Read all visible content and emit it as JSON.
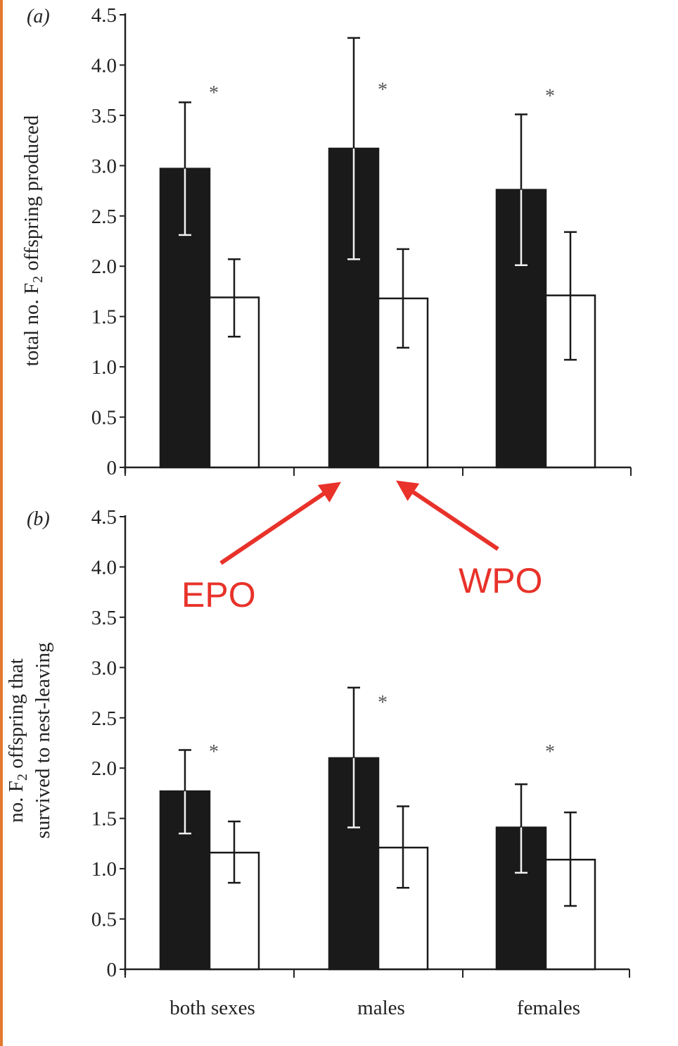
{
  "figure": {
    "edge_color": "#e2792f",
    "annotation_color": "#e8322a",
    "epo_label": "EPO",
    "wpo_label": "WPO"
  },
  "chart_data": [
    {
      "type": "bar",
      "panel_label": "(a)",
      "ylabel": "total no. F",
      "ylabel_sub": "2",
      "ylabel_rest": " offspring produced",
      "ylim": [
        0,
        4.5
      ],
      "yticks": [
        "0",
        "0.5",
        "1.0",
        "1.5",
        "2.0",
        "2.5",
        "3.0",
        "3.5",
        "4.0",
        "4.5"
      ],
      "categories": [
        "both sexes",
        "males",
        "females"
      ],
      "show_category_labels": false,
      "series": [
        {
          "fill": "#1a1a1a",
          "values": [
            2.97,
            3.17,
            2.76
          ],
          "err_low": [
            2.31,
            2.07,
            2.01
          ],
          "err_high": [
            3.63,
            4.27,
            3.51
          ]
        },
        {
          "fill": "#ffffff",
          "values": [
            1.69,
            1.68,
            1.71
          ],
          "err_low": [
            1.3,
            1.19,
            1.07
          ],
          "err_high": [
            2.07,
            2.17,
            2.34
          ]
        }
      ],
      "significance": [
        "*",
        "*",
        "*"
      ],
      "significance_y": [
        3.8,
        3.83,
        3.77
      ]
    },
    {
      "type": "bar",
      "panel_label": "(b)",
      "ylabel": "no. F",
      "ylabel_sub": "2",
      "ylabel_rest": " offspring that",
      "ylabel_line2": "survived to nest-leaving",
      "ylim": [
        0,
        4.5
      ],
      "yticks": [
        "0",
        "0.5",
        "1.0",
        "1.5",
        "2.0",
        "2.5",
        "3.0",
        "3.5",
        "4.0",
        "4.5"
      ],
      "categories": [
        "both sexes",
        "males",
        "females"
      ],
      "show_category_labels": true,
      "series": [
        {
          "fill": "#1a1a1a",
          "values": [
            1.77,
            2.1,
            1.41
          ],
          "err_low": [
            1.35,
            1.41,
            0.96
          ],
          "err_high": [
            2.18,
            2.8,
            1.84
          ]
        },
        {
          "fill": "#ffffff",
          "values": [
            1.16,
            1.21,
            1.09
          ],
          "err_low": [
            0.86,
            0.81,
            0.63
          ],
          "err_high": [
            1.47,
            1.62,
            1.56
          ]
        }
      ],
      "significance": [
        "*",
        "*",
        "*"
      ],
      "significance_y": [
        2.24,
        2.73,
        2.24
      ]
    }
  ]
}
